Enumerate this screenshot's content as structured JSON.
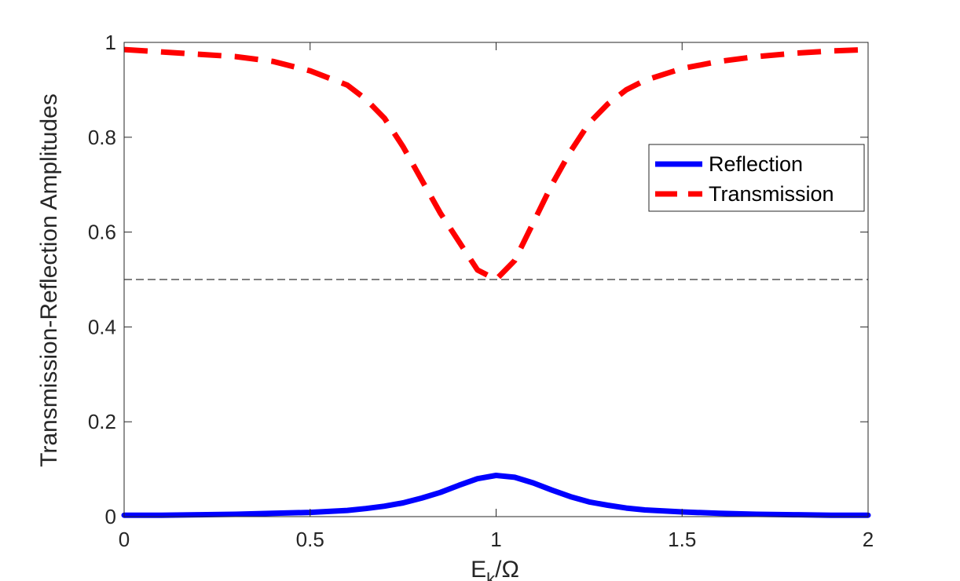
{
  "chart_data": {
    "type": "line",
    "title": "",
    "xlabel_main": "E",
    "xlabel_sub": "k",
    "xlabel_rest": "/Ω",
    "ylabel": "Transmission-Reflection Amplitudes",
    "xlim": [
      0,
      2
    ],
    "ylim": [
      0,
      1
    ],
    "x_ticks": [
      0,
      0.5,
      1,
      1.5,
      2
    ],
    "x_tick_labels": [
      "0",
      "0.5",
      "1",
      "1.5",
      "2"
    ],
    "y_ticks": [
      0,
      0.2,
      0.4,
      0.6,
      0.8,
      1
    ],
    "y_tick_labels": [
      "0",
      "0.2",
      "0.4",
      "0.6",
      "0.8",
      "1"
    ],
    "grid": false,
    "legend_position": "right",
    "series": [
      {
        "name": "Reflection",
        "color": "#0000ff",
        "style": "solid",
        "x": [
          0,
          0.1,
          0.2,
          0.3,
          0.4,
          0.5,
          0.6,
          0.65,
          0.7,
          0.75,
          0.8,
          0.85,
          0.9,
          0.95,
          1.0,
          1.05,
          1.1,
          1.15,
          1.2,
          1.25,
          1.3,
          1.35,
          1.4,
          1.5,
          1.6,
          1.7,
          1.8,
          1.9,
          2.0
        ],
        "y": [
          0.003,
          0.003,
          0.004,
          0.005,
          0.007,
          0.009,
          0.013,
          0.017,
          0.022,
          0.029,
          0.039,
          0.051,
          0.066,
          0.08,
          0.087,
          0.083,
          0.071,
          0.056,
          0.042,
          0.031,
          0.024,
          0.018,
          0.014,
          0.01,
          0.007,
          0.005,
          0.004,
          0.003,
          0.003
        ]
      },
      {
        "name": "Transmission",
        "color": "#ff0000",
        "style": "dashed",
        "x": [
          0,
          0.1,
          0.2,
          0.3,
          0.4,
          0.5,
          0.6,
          0.65,
          0.7,
          0.75,
          0.8,
          0.85,
          0.9,
          0.95,
          1.0,
          1.05,
          1.1,
          1.15,
          1.2,
          1.25,
          1.3,
          1.35,
          1.4,
          1.5,
          1.6,
          1.7,
          1.8,
          1.9,
          2.0
        ],
        "y": [
          0.985,
          0.98,
          0.975,
          0.97,
          0.96,
          0.94,
          0.91,
          0.88,
          0.84,
          0.78,
          0.71,
          0.64,
          0.58,
          0.52,
          0.5,
          0.54,
          0.62,
          0.7,
          0.77,
          0.83,
          0.87,
          0.9,
          0.92,
          0.945,
          0.96,
          0.97,
          0.977,
          0.982,
          0.985
        ]
      }
    ],
    "reference_line": {
      "y": 0.5,
      "color": "#000000",
      "style": "dashed"
    }
  }
}
